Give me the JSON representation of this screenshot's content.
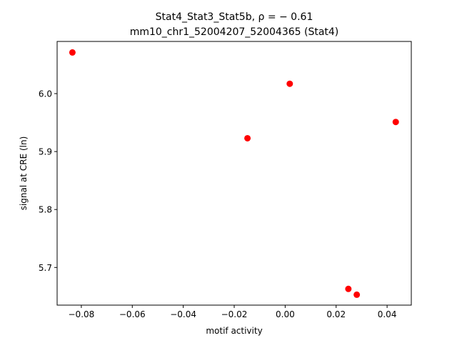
{
  "chart_data": {
    "type": "scatter",
    "title_line1": "Stat4_Stat3_Stat5b, ρ = − 0.61",
    "title_line2": "mm10_chr1_52004207_52004365 (Stat4)",
    "xlabel": "motif activity",
    "ylabel": "signal at CRE (ln)",
    "xlim": [
      -0.0895,
      0.0495
    ],
    "ylim": [
      5.635,
      6.09
    ],
    "grid": false,
    "x_ticks": [
      -0.08,
      -0.06,
      -0.04,
      -0.02,
      0.0,
      0.02,
      0.04
    ],
    "x_tick_labels": [
      "−0.08",
      "−0.06",
      "−0.04",
      "−0.02",
      "0.00",
      "0.02",
      "0.04"
    ],
    "y_ticks": [
      5.7,
      5.8,
      5.9,
      6.0
    ],
    "y_tick_labels": [
      "5.7",
      "5.8",
      "5.9",
      "6.0"
    ],
    "marker_color": "#ff0000",
    "points": [
      {
        "x": -0.0835,
        "y": 6.071
      },
      {
        "x": -0.0148,
        "y": 5.923
      },
      {
        "x": 0.0018,
        "y": 6.017
      },
      {
        "x": 0.0248,
        "y": 5.663
      },
      {
        "x": 0.0281,
        "y": 5.653
      },
      {
        "x": 0.0434,
        "y": 5.951
      }
    ]
  }
}
